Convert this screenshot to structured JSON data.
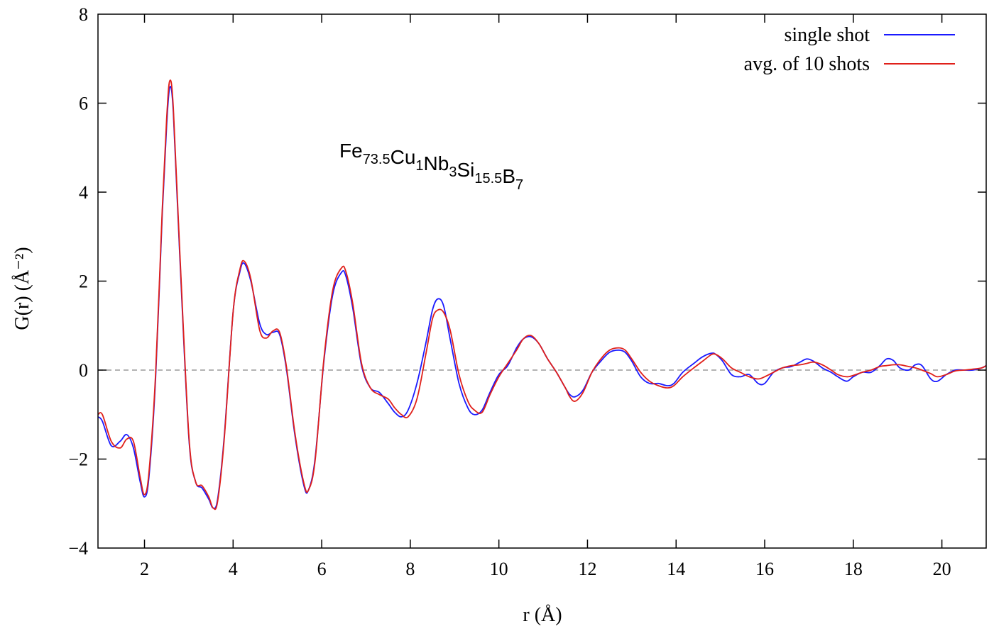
{
  "chart_data": {
    "type": "line",
    "title": "",
    "xlabel": "r (Å)",
    "ylabel": "G(r) (Å⁻²)",
    "xlim": [
      0.95,
      21.0
    ],
    "ylim": [
      -4,
      8
    ],
    "xticks": [
      2,
      4,
      6,
      8,
      10,
      12,
      14,
      16,
      18,
      20
    ],
    "yticks": [
      -4,
      -2,
      0,
      2,
      4,
      6,
      8
    ],
    "xtick_labels": [
      "2",
      "4",
      "6",
      "8",
      "10",
      "12",
      "14",
      "16",
      "18",
      "20"
    ],
    "ytick_labels": [
      "−4",
      "−2",
      "0",
      "2",
      "4",
      "6",
      "8"
    ],
    "grid": false,
    "zero_line": {
      "y": 0,
      "style": "dashed",
      "color": "#9a9a9a"
    },
    "legend_position": "top-right",
    "annotation": {
      "parts": [
        {
          "text": "Fe",
          "sub": "73.5"
        },
        {
          "text": "Cu",
          "sub": "1"
        },
        {
          "text": "Nb",
          "sub": "3"
        },
        {
          "text": "Si",
          "sub": "15.5"
        },
        {
          "text": "B",
          "sub": "7"
        }
      ]
    },
    "series": [
      {
        "name": "single shot",
        "color": "#1a1aff",
        "x": [
          0.95,
          1.05,
          1.25,
          1.45,
          1.6,
          1.75,
          1.9,
          2.0,
          2.1,
          2.25,
          2.4,
          2.5,
          2.57,
          2.65,
          2.8,
          3.0,
          3.15,
          3.3,
          3.45,
          3.55,
          3.65,
          3.8,
          4.0,
          4.15,
          4.25,
          4.4,
          4.6,
          4.75,
          4.9,
          5.05,
          5.2,
          5.4,
          5.6,
          5.7,
          5.85,
          6.05,
          6.25,
          6.45,
          6.55,
          6.7,
          6.9,
          7.1,
          7.3,
          7.5,
          7.65,
          7.8,
          7.95,
          8.15,
          8.35,
          8.5,
          8.62,
          8.75,
          8.9,
          9.1,
          9.3,
          9.45,
          9.62,
          9.8,
          10.0,
          10.2,
          10.4,
          10.55,
          10.72,
          10.9,
          11.1,
          11.3,
          11.5,
          11.6,
          11.72,
          11.9,
          12.1,
          12.3,
          12.5,
          12.7,
          12.85,
          13.0,
          13.2,
          13.4,
          13.6,
          13.8,
          13.95,
          14.15,
          14.4,
          14.6,
          14.8,
          14.9,
          15.05,
          15.25,
          15.45,
          15.65,
          15.85,
          16.0,
          16.2,
          16.4,
          16.6,
          16.8,
          16.95,
          17.1,
          17.3,
          17.5,
          17.65,
          17.85,
          18.0,
          18.2,
          18.4,
          18.6,
          18.75,
          18.9,
          19.05,
          19.25,
          19.4,
          19.55,
          19.75,
          19.9,
          20.1,
          20.3,
          20.5,
          20.7,
          20.9,
          21.0
        ],
        "y": [
          -1.05,
          -1.15,
          -1.7,
          -1.6,
          -1.45,
          -1.75,
          -2.5,
          -2.85,
          -2.4,
          -0.2,
          3.5,
          5.5,
          6.35,
          5.8,
          2.5,
          -1.5,
          -2.5,
          -2.65,
          -2.9,
          -3.1,
          -2.9,
          -1.5,
          1.3,
          2.2,
          2.4,
          2.0,
          1.05,
          0.8,
          0.85,
          0.8,
          0.05,
          -1.5,
          -2.6,
          -2.7,
          -2.0,
          0.2,
          1.7,
          2.2,
          2.1,
          1.4,
          0.1,
          -0.4,
          -0.5,
          -0.75,
          -0.95,
          -1.05,
          -0.9,
          -0.3,
          0.6,
          1.35,
          1.6,
          1.45,
          0.7,
          -0.3,
          -0.85,
          -1.0,
          -0.9,
          -0.5,
          -0.1,
          0.1,
          0.5,
          0.7,
          0.75,
          0.6,
          0.25,
          -0.05,
          -0.4,
          -0.55,
          -0.6,
          -0.45,
          -0.05,
          0.2,
          0.4,
          0.45,
          0.4,
          0.2,
          -0.15,
          -0.3,
          -0.3,
          -0.35,
          -0.3,
          -0.05,
          0.15,
          0.3,
          0.38,
          0.35,
          0.2,
          -0.1,
          -0.15,
          -0.1,
          -0.3,
          -0.3,
          -0.05,
          0.05,
          0.08,
          0.18,
          0.25,
          0.2,
          0.05,
          -0.05,
          -0.15,
          -0.25,
          -0.15,
          -0.05,
          -0.05,
          0.1,
          0.25,
          0.22,
          0.05,
          0.0,
          0.12,
          0.1,
          -0.2,
          -0.25,
          -0.1,
          0.0,
          0.0,
          0.0,
          0.05,
          0.1
        ]
      },
      {
        "name": "avg. of 10 shots",
        "color": "#e0201a",
        "x": [
          0.95,
          1.05,
          1.25,
          1.45,
          1.6,
          1.75,
          1.9,
          2.0,
          2.1,
          2.25,
          2.4,
          2.5,
          2.57,
          2.65,
          2.8,
          3.0,
          3.15,
          3.3,
          3.45,
          3.55,
          3.65,
          3.8,
          4.0,
          4.15,
          4.25,
          4.4,
          4.6,
          4.75,
          4.9,
          5.05,
          5.2,
          5.4,
          5.6,
          5.7,
          5.85,
          6.05,
          6.25,
          6.45,
          6.55,
          6.7,
          6.9,
          7.1,
          7.3,
          7.5,
          7.65,
          7.8,
          7.95,
          8.15,
          8.35,
          8.5,
          8.62,
          8.75,
          8.9,
          9.1,
          9.3,
          9.45,
          9.62,
          9.8,
          10.0,
          10.2,
          10.4,
          10.55,
          10.72,
          10.9,
          11.1,
          11.3,
          11.5,
          11.6,
          11.72,
          11.9,
          12.1,
          12.3,
          12.5,
          12.7,
          12.85,
          13.0,
          13.2,
          13.4,
          13.6,
          13.8,
          13.95,
          14.15,
          14.4,
          14.6,
          14.8,
          14.9,
          15.05,
          15.25,
          15.45,
          15.65,
          15.85,
          16.0,
          16.2,
          16.4,
          16.6,
          16.8,
          16.95,
          17.1,
          17.3,
          17.5,
          17.65,
          17.85,
          18.0,
          18.2,
          18.4,
          18.6,
          18.75,
          18.9,
          19.05,
          19.25,
          19.4,
          19.55,
          19.75,
          19.9,
          20.1,
          20.3,
          20.5,
          20.7,
          20.9,
          21.0
        ],
        "y": [
          -1.0,
          -1.0,
          -1.6,
          -1.75,
          -1.55,
          -1.6,
          -2.4,
          -2.8,
          -2.3,
          -0.1,
          3.6,
          5.65,
          6.5,
          5.9,
          2.6,
          -1.45,
          -2.5,
          -2.6,
          -2.85,
          -3.1,
          -2.95,
          -1.55,
          1.3,
          2.25,
          2.45,
          2.05,
          0.9,
          0.72,
          0.88,
          0.85,
          0.1,
          -1.45,
          -2.55,
          -2.7,
          -2.05,
          0.25,
          1.8,
          2.3,
          2.2,
          1.5,
          0.15,
          -0.4,
          -0.55,
          -0.65,
          -0.85,
          -1.0,
          -1.05,
          -0.65,
          0.35,
          1.15,
          1.35,
          1.3,
          0.9,
          -0.1,
          -0.7,
          -0.9,
          -0.95,
          -0.55,
          -0.15,
          0.15,
          0.45,
          0.7,
          0.78,
          0.6,
          0.25,
          -0.05,
          -0.4,
          -0.6,
          -0.7,
          -0.5,
          -0.05,
          0.25,
          0.45,
          0.5,
          0.45,
          0.25,
          -0.05,
          -0.25,
          -0.35,
          -0.4,
          -0.35,
          -0.15,
          0.05,
          0.2,
          0.35,
          0.35,
          0.25,
          0.05,
          -0.05,
          -0.15,
          -0.2,
          -0.15,
          -0.05,
          0.05,
          0.1,
          0.12,
          0.15,
          0.18,
          0.12,
          0.0,
          -0.1,
          -0.15,
          -0.12,
          -0.05,
          0.0,
          0.08,
          0.1,
          0.12,
          0.12,
          0.08,
          0.05,
          0.0,
          -0.08,
          -0.15,
          -0.1,
          -0.02,
          0.0,
          0.02,
          0.05,
          0.1
        ]
      }
    ]
  }
}
